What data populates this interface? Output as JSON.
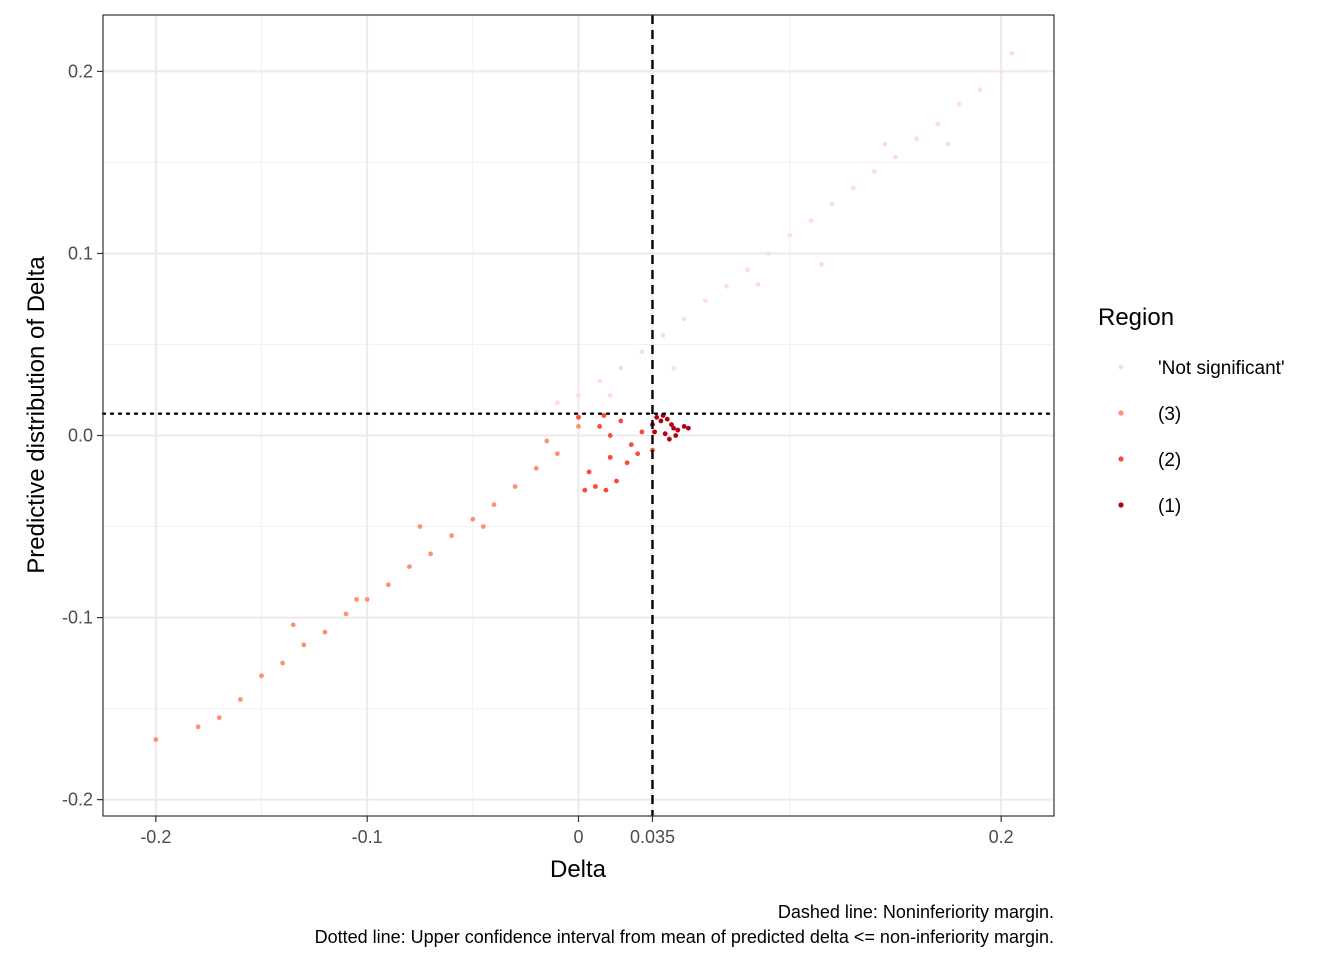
{
  "chart_data": {
    "type": "scatter",
    "xlabel": "Delta",
    "ylabel": "Predictive distribution of Delta",
    "xlim": [
      -0.225,
      0.225
    ],
    "ylim": [
      -0.209,
      0.231
    ],
    "x_ticks": [
      {
        "value": -0.2,
        "label": "-0.2"
      },
      {
        "value": -0.1,
        "label": "-0.1"
      },
      {
        "value": 0,
        "label": "0"
      },
      {
        "value": 0.035,
        "label": "0.035"
      },
      {
        "value": 0.2,
        "label": "0.2"
      }
    ],
    "y_ticks": [
      {
        "value": -0.2,
        "label": "-0.2"
      },
      {
        "value": -0.1,
        "label": "-0.1"
      },
      {
        "value": 0,
        "label": "0.0"
      },
      {
        "value": 0.1,
        "label": "0.1"
      },
      {
        "value": 0.2,
        "label": "0.2"
      }
    ],
    "grid": true,
    "reference_lines": [
      {
        "orientation": "vertical",
        "value": 0.035,
        "style": "dashed"
      },
      {
        "orientation": "horizontal",
        "value": 0.012,
        "style": "dotted"
      }
    ],
    "legend": {
      "title": "Region",
      "position": "right",
      "entries": [
        {
          "label": "'Not significant'",
          "color": "#fee0d2"
        },
        {
          "label": "(3)",
          "color": "#fc9272"
        },
        {
          "label": "(2)",
          "color": "#fb4a36"
        },
        {
          "label": "(1)",
          "color": "#b30015"
        }
      ]
    },
    "series": [
      {
        "name": "'Not significant'",
        "color": "#fee0d2",
        "x": [
          -0.02,
          -0.01,
          0.0,
          0.01,
          0.02,
          0.03,
          0.04,
          0.05,
          0.06,
          0.07,
          0.08,
          0.09,
          0.1,
          0.11,
          0.12,
          0.13,
          0.14,
          0.15,
          0.16,
          0.17,
          0.18,
          0.19,
          0.2,
          0.205,
          0.015,
          0.045,
          0.085,
          0.115,
          0.145,
          0.175
        ],
        "y": [
          0.013,
          0.018,
          0.022,
          0.03,
          0.037,
          0.046,
          0.055,
          0.064,
          0.074,
          0.082,
          0.091,
          0.1,
          0.11,
          0.118,
          0.127,
          0.136,
          0.145,
          0.153,
          0.163,
          0.171,
          0.182,
          0.19,
          0.2,
          0.21,
          0.022,
          0.037,
          0.083,
          0.094,
          0.16,
          0.16
        ]
      },
      {
        "name": "(3)",
        "color": "#fc9272",
        "x": [
          -0.2,
          -0.18,
          -0.17,
          -0.16,
          -0.15,
          -0.14,
          -0.13,
          -0.12,
          -0.11,
          -0.1,
          -0.09,
          -0.08,
          -0.07,
          -0.06,
          -0.05,
          -0.04,
          -0.03,
          -0.02,
          -0.01,
          0.0,
          -0.135,
          -0.105,
          -0.075,
          -0.045,
          -0.015
        ],
        "y": [
          -0.167,
          -0.16,
          -0.155,
          -0.145,
          -0.132,
          -0.125,
          -0.115,
          -0.108,
          -0.098,
          -0.09,
          -0.082,
          -0.072,
          -0.065,
          -0.055,
          -0.046,
          -0.038,
          -0.028,
          -0.018,
          -0.01,
          0.005,
          -0.104,
          -0.09,
          -0.05,
          -0.05,
          -0.003
        ]
      },
      {
        "name": "(2)",
        "color": "#fb4a36",
        "x": [
          0.0,
          0.005,
          0.01,
          0.015,
          0.02,
          0.025,
          0.03,
          0.035,
          0.003,
          0.008,
          0.013,
          0.018,
          0.023,
          0.028,
          0.012,
          0.015
        ],
        "y": [
          0.01,
          -0.02,
          0.005,
          -0.012,
          0.008,
          -0.005,
          0.002,
          -0.008,
          -0.03,
          -0.028,
          -0.03,
          -0.025,
          -0.015,
          -0.01,
          0.011,
          0.0
        ]
      },
      {
        "name": "(1)",
        "color": "#b30015",
        "x": [
          0.035,
          0.037,
          0.039,
          0.04,
          0.042,
          0.044,
          0.045,
          0.047,
          0.05,
          0.052,
          0.036,
          0.041,
          0.043,
          0.046
        ],
        "y": [
          0.006,
          0.01,
          0.008,
          0.011,
          0.009,
          0.006,
          0.004,
          0.003,
          0.005,
          0.004,
          0.002,
          0.001,
          -0.002,
          0.0
        ]
      }
    ],
    "captions": [
      "Dashed line: Noninferiority margin.",
      "Dotted line: Upper confidence interval from mean of predicted delta <= non-inferiority margin."
    ]
  }
}
